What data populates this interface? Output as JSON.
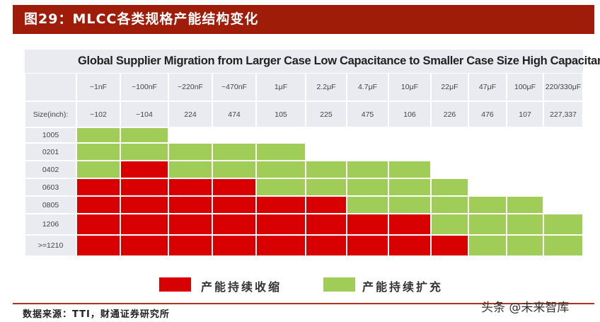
{
  "header": {
    "title": "图29：MLCC各类规格产能结构变化"
  },
  "chart_data": {
    "type": "table",
    "title": "Global Supplier Migration from Larger Case Low Capacitance to Smaller Case Size High Capacitance",
    "capacitance_labels": [
      "~1nF",
      "~100nF",
      "~220nF",
      "~470nF",
      "1μF",
      "2.2μF",
      "4.7μF",
      "10μF",
      "22μF",
      "47μF",
      "100μF",
      "220/330μF"
    ],
    "size_label": "Size(inch):",
    "size_codes": [
      "~102",
      "~104",
      "224",
      "474",
      "105",
      "225",
      "475",
      "106",
      "226",
      "476",
      "107",
      "227,337"
    ],
    "rows": [
      {
        "case": "1005",
        "cells": [
          "G",
          "G",
          "",
          "",
          "",
          "",
          "",
          "",
          "",
          "",
          "",
          ""
        ]
      },
      {
        "case": "0201",
        "cells": [
          "G",
          "G",
          "G",
          "G",
          "G",
          "",
          "",
          "",
          "",
          "",
          "",
          ""
        ]
      },
      {
        "case": "0402",
        "cells": [
          "G",
          "R",
          "G",
          "G",
          "G",
          "G",
          "G",
          "G",
          "",
          "",
          "",
          ""
        ]
      },
      {
        "case": "0603",
        "cells": [
          "R",
          "R",
          "R",
          "R",
          "G",
          "G",
          "G",
          "G",
          "G",
          "",
          "",
          ""
        ]
      },
      {
        "case": "0805",
        "cells": [
          "R",
          "R",
          "R",
          "R",
          "R",
          "R",
          "G",
          "G",
          "G",
          "G",
          "G",
          ""
        ]
      },
      {
        "case": "1206",
        "cells": [
          "R",
          "R",
          "R",
          "R",
          "R",
          "R",
          "R",
          "R",
          "G",
          "G",
          "G",
          "G"
        ]
      },
      {
        "case": ">=1210",
        "cells": [
          "R",
          "R",
          "R",
          "R",
          "R",
          "R",
          "R",
          "R",
          "R",
          "G",
          "G",
          "G"
        ]
      }
    ],
    "colors": {
      "R": "#d80000",
      "G": "#a0cc58"
    }
  },
  "legend": [
    {
      "key": "R",
      "label": "产能持续收缩",
      "color": "#d80000"
    },
    {
      "key": "G",
      "label": "产能持续扩充",
      "color": "#a0cc58"
    }
  ],
  "footer": {
    "source": "数据来源：TTI，财通证券研究所",
    "watermark": "头条 @未来智库"
  }
}
